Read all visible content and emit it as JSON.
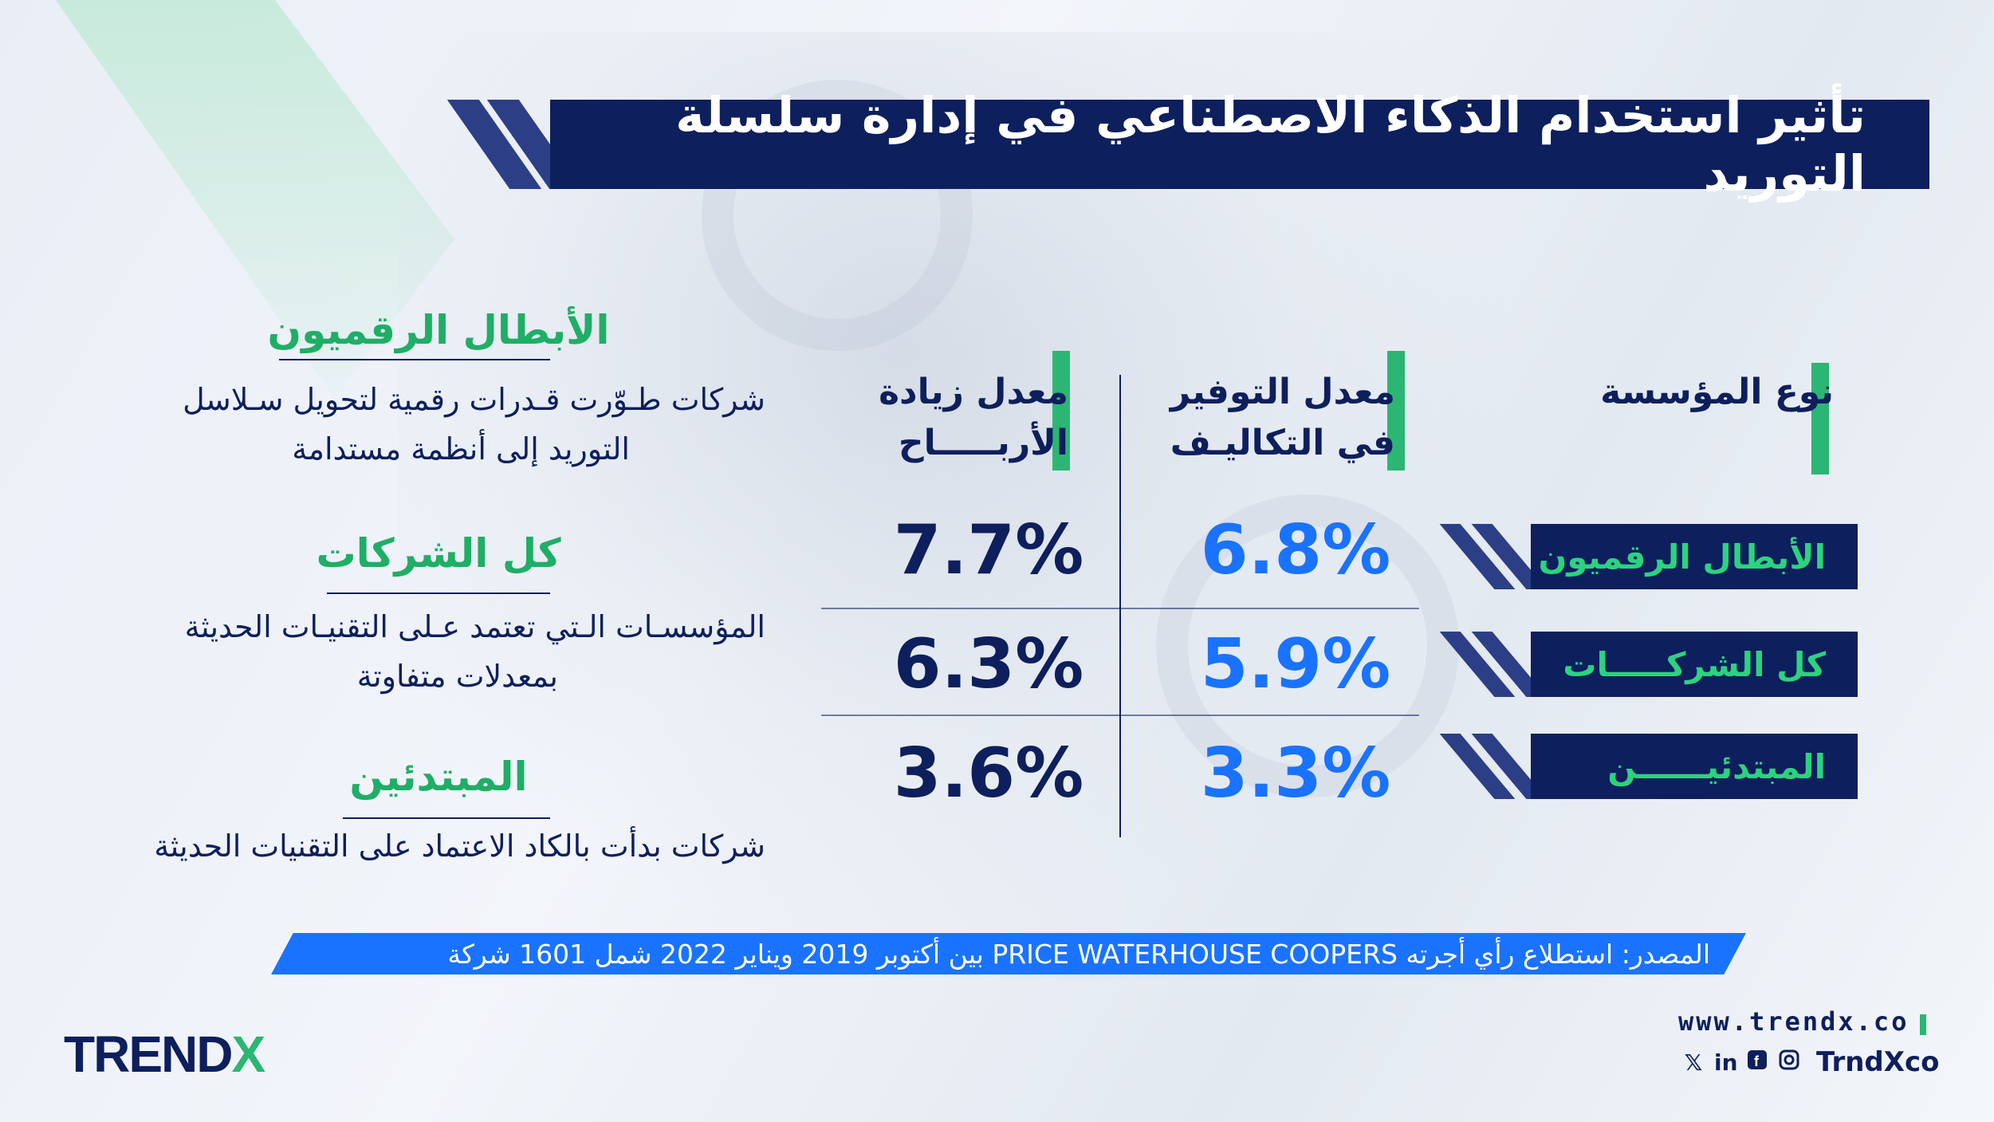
{
  "title": "تأثير استخدام الذكاء الاصطناعي في إدارة سلسلة التوريد",
  "headers": {
    "type": "نوع المؤسسة",
    "cost": [
      "معدل التوفير",
      "في التكاليـف"
    ],
    "profit": [
      "معدل زيادة",
      "الأربـــــاح"
    ]
  },
  "chart_data": {
    "type": "table",
    "title": "تأثير استخدام الذكاء الاصطناعي في إدارة سلسلة التوريد",
    "columns": [
      "نوع المؤسسة",
      "معدل التوفير في التكاليـف",
      "معدل زيادة الأربـــــاح"
    ],
    "rows": [
      {
        "category": "الأبطال الرقميون",
        "cost_saving": "6.8%",
        "profit_increase": "7.7%"
      },
      {
        "category": "كل الشركـــــات",
        "cost_saving": "5.9%",
        "profit_increase": "6.3%"
      },
      {
        "category": "المبتدئيــــــن",
        "cost_saving": "3.3%",
        "profit_increase": "3.6%"
      }
    ],
    "cost_saving_values": [
      6.8,
      5.9,
      3.3
    ],
    "profit_increase_values": [
      7.7,
      6.3,
      3.6
    ]
  },
  "legend": [
    {
      "title": "الأبطال الرقميون",
      "desc": [
        "شركات طـوّرت قـدرات رقمية لتحويل سـلاسل",
        "التوريد إلى أنظمة مستدامة"
      ]
    },
    {
      "title": "كل الشركات",
      "desc": [
        "المؤسسـات الـتي تعتمد عـلى التقنيـات الحديثة",
        "بمعدلات متفاوتة"
      ]
    },
    {
      "title": "المبتدئين",
      "desc": [
        "شركات بدأت بالكاد الاعتماد على التقنيات الحديثة"
      ]
    }
  ],
  "source": "المصدر: استطلاع رأي أجرته PRICE WATERHOUSE COOPERS بين أكتوبر 2019 ويناير 2022 شمل 1601 شركة",
  "footer": {
    "logo_main": "TREND",
    "logo_x": "X",
    "website": "www.trendx.co",
    "social_handle": "TrndXco",
    "icons": [
      "x-icon",
      "linkedin-icon",
      "facebook-icon",
      "instagram-icon"
    ]
  },
  "colors": {
    "navy": "#0d1f5c",
    "blue": "#1a73ff",
    "green": "#2bb673"
  }
}
